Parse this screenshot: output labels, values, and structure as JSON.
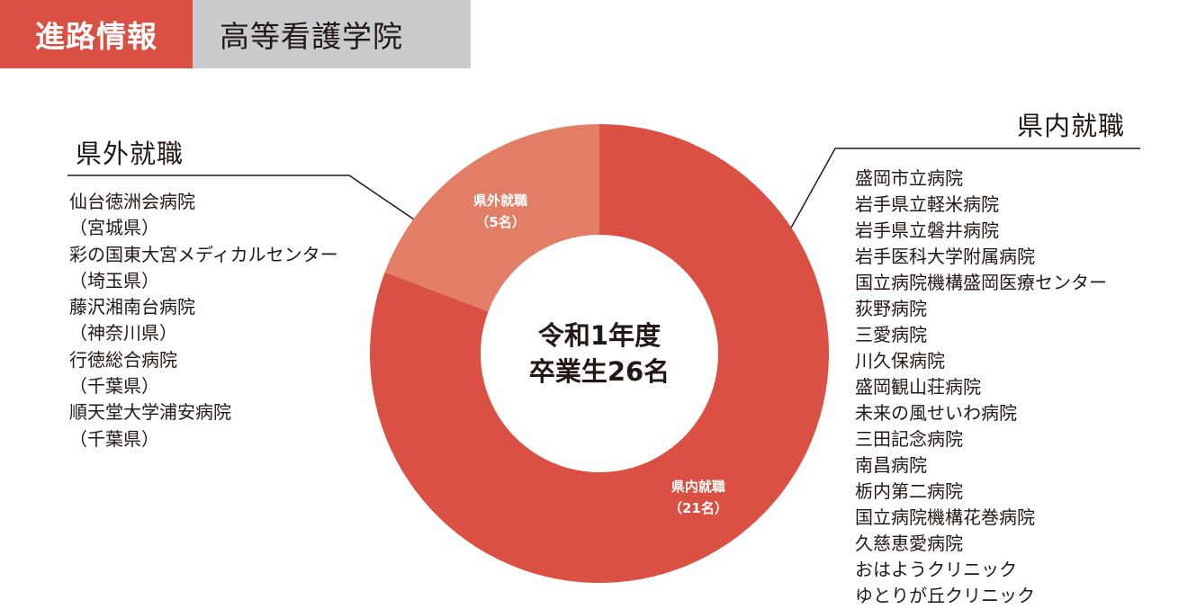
{
  "header": {
    "category": "進路情報",
    "school": "高等看護学院"
  },
  "colors": {
    "accent": "#da5043",
    "inside": "#da5043",
    "outside": "#e27d66",
    "tag_gray": "#cacbcc"
  },
  "chart_data": {
    "type": "pie",
    "donut": true,
    "center_label": [
      "令和1年度",
      "卒業生26名"
    ],
    "slices": [
      {
        "label": "県内就職",
        "count_label": "（21名）",
        "value": 21,
        "color": "#da5043"
      },
      {
        "label": "県外就職",
        "count_label": "（5名）",
        "value": 5,
        "color": "#e27d66"
      }
    ]
  },
  "outside": {
    "heading": "県外就職",
    "items": [
      "仙台徳洲会病院",
      "（宮城県）",
      "彩の国東大宮メディカルセンター",
      "（埼玉県）",
      "藤沢湘南台病院",
      "（神奈川県）",
      "行徳総合病院",
      "（千葉県）",
      "順天堂大学浦安病院",
      "（千葉県）"
    ]
  },
  "inside": {
    "heading": "県内就職",
    "items": [
      "盛岡市立病院",
      "岩手県立軽米病院",
      "岩手県立磐井病院",
      "岩手医科大学附属病院",
      "国立病院機構盛岡医療センター",
      "荻野病院",
      "三愛病院",
      "川久保病院",
      "盛岡観山荘病院",
      "未来の風せいわ病院",
      "三田記念病院",
      "南昌病院",
      "栃内第二病院",
      "国立病院機構花巻病院",
      "久慈恵愛病院",
      "おはようクリニック",
      "ゆとりが丘クリニック"
    ]
  }
}
